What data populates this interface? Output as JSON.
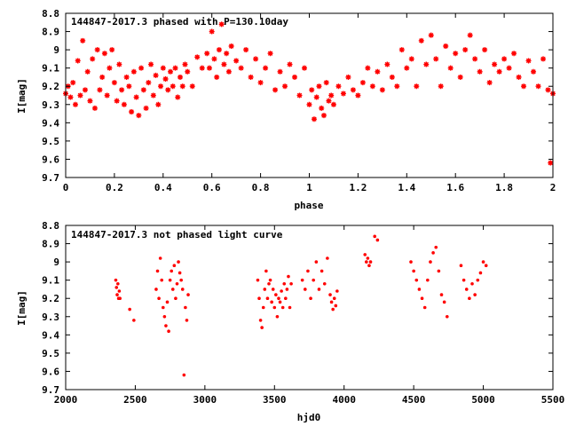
{
  "chart_data": [
    {
      "type": "scatter",
      "title": "144847-2017.3 phased with P=130.10day",
      "xlabel": "phase",
      "ylabel": "I[mag]",
      "xlim": [
        0,
        2
      ],
      "ylim": [
        8.8,
        9.7
      ],
      "y_inverted": true,
      "xticks": [
        "0",
        "0.2",
        "0.4",
        "0.6",
        "0.8",
        "1",
        "1.2",
        "1.4",
        "1.6",
        "1.8",
        "2"
      ],
      "yticks": [
        "8.8",
        "8.9",
        "9",
        "9.1",
        "9.2",
        "9.3",
        "9.4",
        "9.5",
        "9.6",
        "9.7"
      ],
      "grid": false,
      "marker": "star",
      "color": "#ff0000",
      "series": [
        {
          "x": [
            0.0,
            0.01,
            0.02,
            0.03,
            0.04,
            0.05,
            0.06,
            0.07,
            0.08,
            0.09,
            0.1,
            0.11,
            0.12,
            0.13,
            0.14,
            0.15,
            0.16,
            0.17,
            0.18,
            0.19,
            0.2,
            0.21,
            0.22,
            0.23,
            0.24,
            0.25,
            0.26,
            0.27,
            0.28,
            0.29,
            0.3,
            0.31,
            0.32,
            0.33,
            0.34,
            0.35,
            0.36,
            0.37,
            0.38,
            0.39,
            0.4,
            0.41,
            0.42,
            0.43,
            0.44,
            0.45,
            0.46,
            0.47,
            0.48,
            0.49,
            0.5,
            0.52,
            0.54,
            0.56,
            0.58,
            0.59,
            0.6,
            0.61,
            0.62,
            0.63,
            0.64,
            0.65,
            0.66,
            0.67,
            0.68,
            0.7,
            0.72,
            0.74,
            0.76,
            0.78,
            0.8,
            0.82,
            0.84,
            0.86,
            0.88,
            0.9,
            0.92,
            0.94,
            0.96,
            0.98,
            1.0,
            1.01,
            1.02,
            1.03,
            1.04,
            1.05,
            1.06,
            1.07,
            1.08,
            1.09,
            1.1,
            1.12,
            1.14,
            1.16,
            1.18,
            1.2,
            1.22,
            1.24,
            1.26,
            1.28,
            1.3,
            1.32,
            1.34,
            1.36,
            1.38,
            1.4,
            1.42,
            1.44,
            1.46,
            1.48,
            1.5,
            1.52,
            1.54,
            1.56,
            1.58,
            1.6,
            1.62,
            1.64,
            1.66,
            1.68,
            1.7,
            1.72,
            1.74,
            1.76,
            1.78,
            1.8,
            1.82,
            1.84,
            1.86,
            1.88,
            1.9,
            1.92,
            1.94,
            1.96,
            1.98,
            1.99,
            2.0
          ],
          "y": [
            9.24,
            9.2,
            9.26,
            9.18,
            9.3,
            9.06,
            9.25,
            8.95,
            9.22,
            9.12,
            9.28,
            9.05,
            9.32,
            9.0,
            9.22,
            9.15,
            9.02,
            9.25,
            9.1,
            9.0,
            9.18,
            9.28,
            9.08,
            9.22,
            9.3,
            9.15,
            9.2,
            9.34,
            9.12,
            9.26,
            9.36,
            9.1,
            9.22,
            9.32,
            9.18,
            9.08,
            9.25,
            9.14,
            9.3,
            9.2,
            9.1,
            9.16,
            9.22,
            9.12,
            9.2,
            9.1,
            9.26,
            9.15,
            9.2,
            9.08,
            9.12,
            9.2,
            9.04,
            9.1,
            9.02,
            9.1,
            8.9,
            9.05,
            9.15,
            9.0,
            8.86,
            9.08,
            9.02,
            9.12,
            8.98,
            9.06,
            9.1,
            9.0,
            9.15,
            9.05,
            9.18,
            9.1,
            9.02,
            9.22,
            9.12,
            9.2,
            9.08,
            9.15,
            9.25,
            9.1,
            9.3,
            9.22,
            9.38,
            9.26,
            9.2,
            9.32,
            9.36,
            9.18,
            9.28,
            9.25,
            9.3,
            9.2,
            9.24,
            9.15,
            9.22,
            9.25,
            9.18,
            9.1,
            9.2,
            9.12,
            9.22,
            9.08,
            9.15,
            9.2,
            9.0,
            9.1,
            9.05,
            9.2,
            8.95,
            9.08,
            8.92,
            9.05,
            9.2,
            8.98,
            9.1,
            9.02,
            9.15,
            9.0,
            8.92,
            9.05,
            9.12,
            9.0,
            9.18,
            9.08,
            9.12,
            9.05,
            9.1,
            9.02,
            9.15,
            9.2,
            9.06,
            9.12,
            9.2,
            9.05,
            9.22,
            9.62,
            9.24
          ]
        }
      ]
    },
    {
      "type": "scatter",
      "title": "144847-2017.3 not phased light curve",
      "xlabel": "hjd0",
      "ylabel": "I[mag]",
      "xlim": [
        2000,
        5500
      ],
      "ylim": [
        8.8,
        9.7
      ],
      "y_inverted": true,
      "xticks": [
        "2000",
        "2500",
        "3000",
        "3500",
        "4000",
        "4500",
        "5000",
        "5500"
      ],
      "yticks": [
        "8.8",
        "8.9",
        "9",
        "9.1",
        "9.2",
        "9.3",
        "9.4",
        "9.5",
        "9.6",
        "9.7"
      ],
      "grid": false,
      "marker": "dot",
      "color": "#ff0000",
      "series": [
        {
          "x": [
            2360,
            2365,
            2370,
            2375,
            2380,
            2385,
            2390,
            2460,
            2490,
            2650,
            2660,
            2670,
            2680,
            2690,
            2700,
            2710,
            2720,
            2730,
            2740,
            2750,
            2760,
            2770,
            2780,
            2790,
            2800,
            2810,
            2820,
            2830,
            2840,
            2850,
            2860,
            2870,
            2880,
            3380,
            3390,
            3400,
            3410,
            3420,
            3430,
            3440,
            3450,
            3460,
            3470,
            3480,
            3490,
            3500,
            3510,
            3520,
            3530,
            3540,
            3550,
            3560,
            3570,
            3580,
            3590,
            3600,
            3610,
            3620,
            3700,
            3720,
            3740,
            3760,
            3780,
            3800,
            3820,
            3840,
            3860,
            3880,
            3900,
            3910,
            3920,
            3930,
            3940,
            3950,
            4150,
            4160,
            4170,
            4180,
            4190,
            4220,
            4240,
            4480,
            4500,
            4520,
            4540,
            4560,
            4580,
            4600,
            4620,
            4640,
            4660,
            4680,
            4700,
            4720,
            4740,
            4840,
            4860,
            4880,
            4900,
            4920,
            4940,
            4960,
            4980,
            5000,
            5020
          ],
          "y": [
            9.1,
            9.14,
            9.18,
            9.12,
            9.2,
            9.16,
            9.2,
            9.26,
            9.32,
            9.15,
            9.05,
            9.2,
            8.98,
            9.1,
            9.25,
            9.3,
            9.35,
            9.22,
            9.38,
            9.1,
            9.05,
            9.15,
            9.02,
            9.2,
            9.12,
            9.0,
            9.06,
            9.1,
            9.15,
            9.62,
            9.25,
            9.32,
            9.18,
            9.1,
            9.2,
            9.32,
            9.36,
            9.25,
            9.15,
            9.05,
            9.2,
            9.12,
            9.1,
            9.22,
            9.15,
            9.25,
            9.18,
            9.3,
            9.2,
            9.22,
            9.16,
            9.25,
            9.12,
            9.2,
            9.15,
            9.08,
            9.25,
            9.12,
            9.1,
            9.15,
            9.05,
            9.2,
            9.1,
            9.0,
            9.15,
            9.05,
            9.12,
            8.98,
            9.18,
            9.22,
            9.26,
            9.2,
            9.24,
            9.16,
            8.96,
            9.0,
            8.98,
            9.02,
            9.0,
            8.86,
            8.88,
            9.0,
            9.05,
            9.1,
            9.15,
            9.2,
            9.25,
            9.1,
            9.0,
            8.95,
            8.92,
            9.05,
            9.18,
            9.22,
            9.3,
            9.02,
            9.1,
            9.15,
            9.2,
            9.12,
            9.18,
            9.1,
            9.06,
            9.0,
            9.02
          ]
        }
      ]
    }
  ]
}
